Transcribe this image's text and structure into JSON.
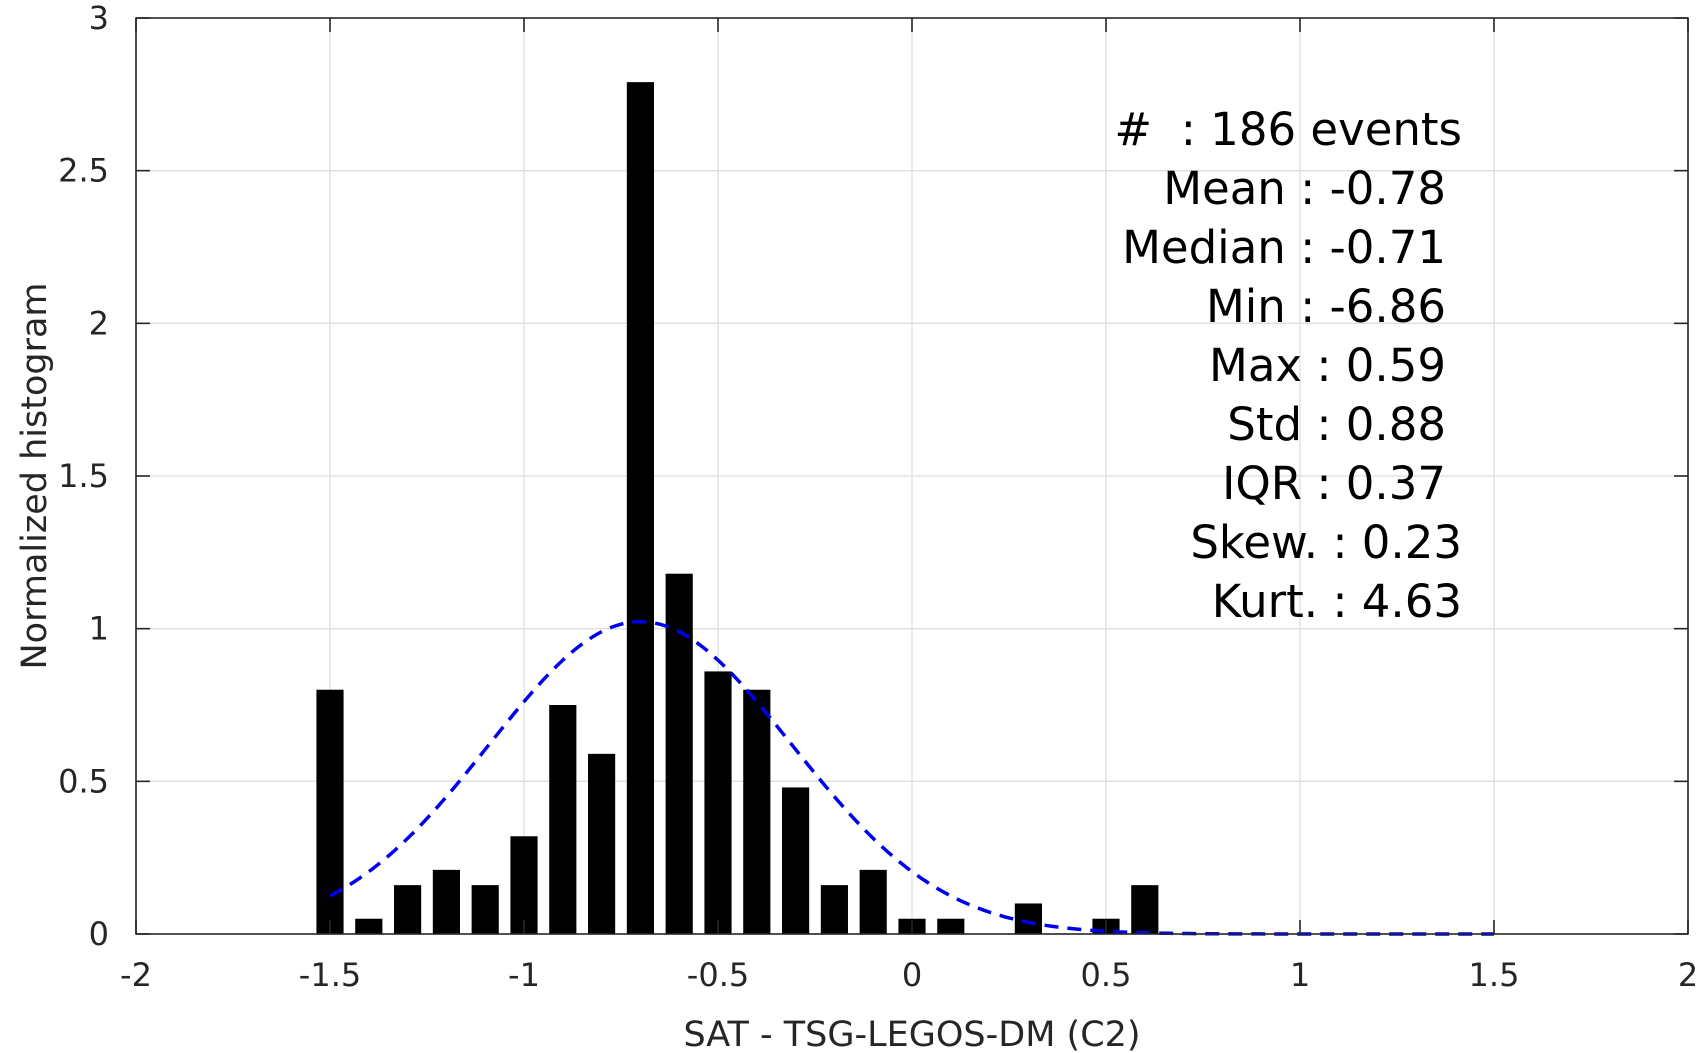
{
  "chart_data": {
    "type": "bar",
    "xlabel": "SAT - TSG-LEGOS-DM (C2)",
    "ylabel": "Normalized histogram",
    "xlim": [
      -2,
      2
    ],
    "ylim": [
      0,
      3
    ],
    "grid": true,
    "x_ticks": [
      -2,
      -1.5,
      -1,
      -0.5,
      0,
      0.5,
      1,
      1.5,
      2
    ],
    "x_tick_labels": [
      "-2",
      "-1.5",
      "-1",
      "-0.5",
      "0",
      "0.5",
      "1",
      "1.5",
      "2"
    ],
    "y_ticks": [
      0,
      0.5,
      1,
      1.5,
      2,
      2.5,
      3
    ],
    "y_tick_labels": [
      "0",
      "0.5",
      "1",
      "1.5",
      "2",
      "2.5",
      "3"
    ],
    "bar_width": 0.07,
    "bar_color": "#000000",
    "bars": [
      {
        "x": -1.5,
        "y": 0.8
      },
      {
        "x": -1.4,
        "y": 0.05
      },
      {
        "x": -1.3,
        "y": 0.16
      },
      {
        "x": -1.2,
        "y": 0.21
      },
      {
        "x": -1.1,
        "y": 0.16
      },
      {
        "x": -1.0,
        "y": 0.32
      },
      {
        "x": -0.9,
        "y": 0.75
      },
      {
        "x": -0.8,
        "y": 0.59
      },
      {
        "x": -0.7,
        "y": 2.79
      },
      {
        "x": -0.6,
        "y": 1.18
      },
      {
        "x": -0.5,
        "y": 0.86
      },
      {
        "x": -0.4,
        "y": 0.8
      },
      {
        "x": -0.3,
        "y": 0.48
      },
      {
        "x": -0.2,
        "y": 0.16
      },
      {
        "x": -0.1,
        "y": 0.21
      },
      {
        "x": 0.0,
        "y": 0.05
      },
      {
        "x": 0.1,
        "y": 0.05
      },
      {
        "x": 0.3,
        "y": 0.1
      },
      {
        "x": 0.5,
        "y": 0.05
      },
      {
        "x": 0.6,
        "y": 0.16
      }
    ],
    "fit_curve": {
      "style": "dashed",
      "color": "#0000ee",
      "distribution": "normal",
      "mean": -0.7,
      "std": 0.39,
      "x_range": [
        -1.5,
        1.5
      ]
    },
    "stats_lines": [
      "#  : 186 events",
      "Mean : -0.78",
      "Median : -0.71",
      "Min : -6.86",
      "Max : 0.59",
      "Std : 0.88",
      "IQR : 0.37",
      "Skew. : 0.23",
      "Kurt. : 4.63"
    ]
  }
}
